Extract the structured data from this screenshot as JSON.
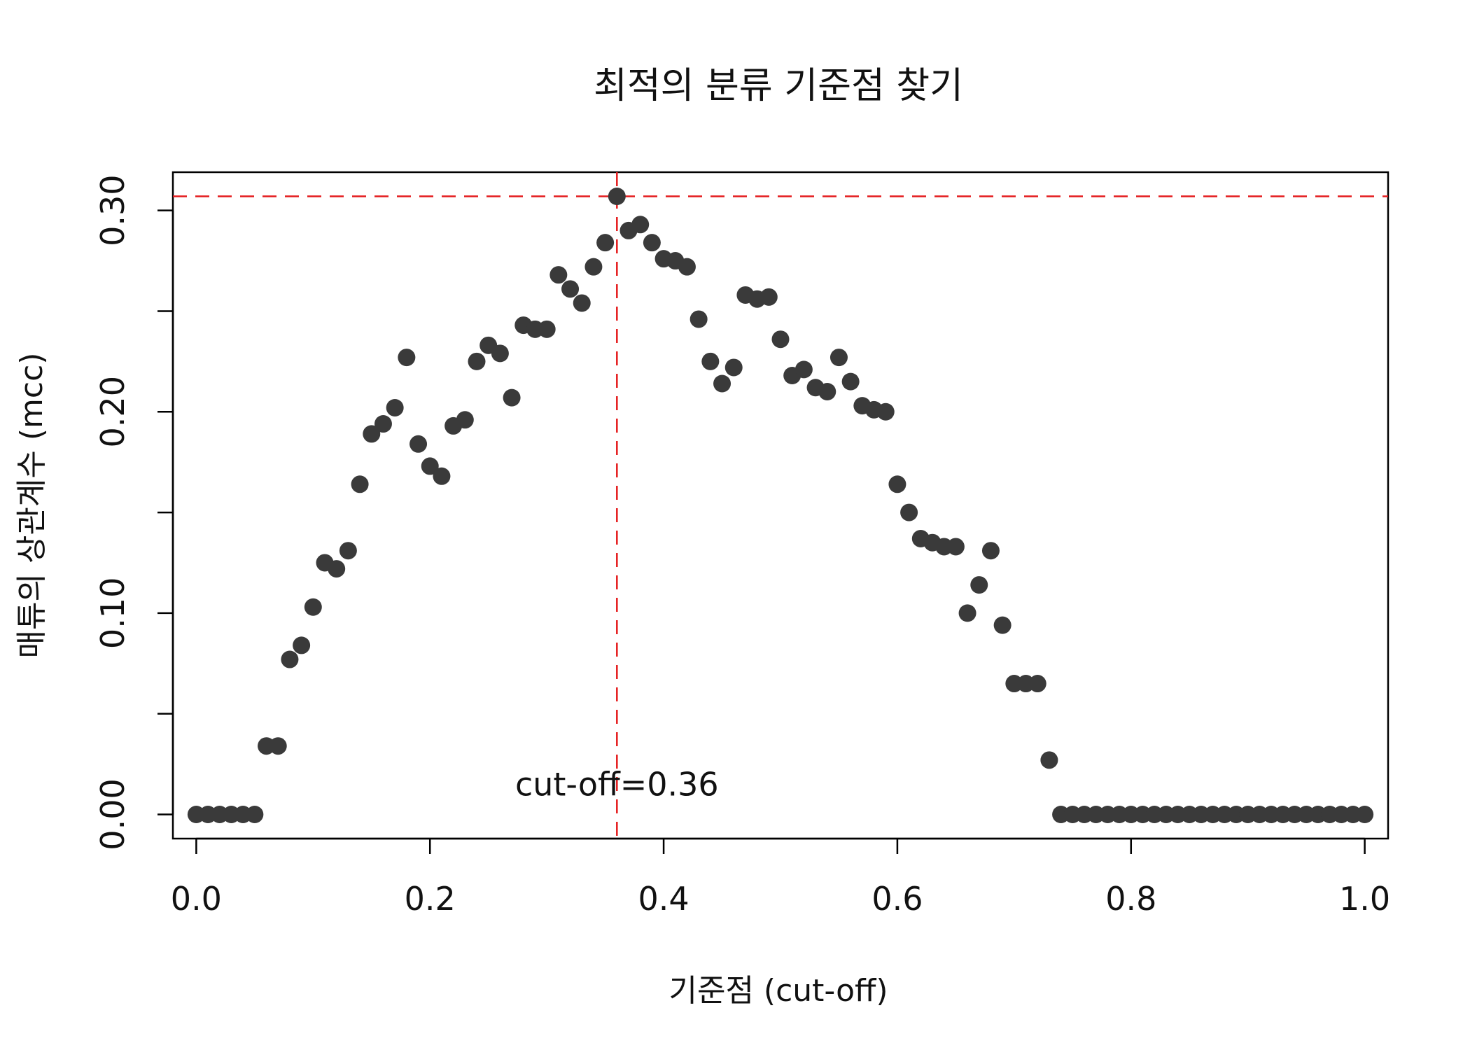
{
  "chart_data": {
    "type": "scatter",
    "title": "최적의 분류 기준점 찾기",
    "xlabel": "기준점 (cut-off)",
    "ylabel": "매튜의 상관계수 (mcc)",
    "xlim": [
      -0.02,
      1.02
    ],
    "ylim": [
      -0.012,
      0.319
    ],
    "x_ticks": [
      0.0,
      0.2,
      0.4,
      0.6,
      0.8,
      1.0
    ],
    "x_tick_labels": [
      "0.0",
      "0.2",
      "0.4",
      "0.6",
      "0.8",
      "1.0"
    ],
    "y_ticks": [
      0.0,
      0.05,
      0.1,
      0.15,
      0.2,
      0.25,
      0.3
    ],
    "y_tick_labels": [
      "0.00",
      "",
      "0.10",
      "",
      "0.20",
      "",
      "0.30"
    ],
    "grid": false,
    "point_color": "#3a3a3a",
    "reference_color": "#e41a1c",
    "reference_lines": {
      "vertical_x": 0.36,
      "horizontal_y": 0.307
    },
    "annotation": {
      "text": "cut-off=0.36",
      "x": 0.36,
      "y": 0.015
    },
    "x": [
      0.0,
      0.01,
      0.02,
      0.03,
      0.04,
      0.05,
      0.06,
      0.07,
      0.08,
      0.09,
      0.1,
      0.11,
      0.12,
      0.13,
      0.14,
      0.15,
      0.16,
      0.17,
      0.18,
      0.19,
      0.2,
      0.21,
      0.22,
      0.23,
      0.24,
      0.25,
      0.26,
      0.27,
      0.28,
      0.29,
      0.3,
      0.31,
      0.32,
      0.33,
      0.34,
      0.35,
      0.36,
      0.37,
      0.38,
      0.39,
      0.4,
      0.41,
      0.42,
      0.43,
      0.44,
      0.45,
      0.46,
      0.47,
      0.48,
      0.49,
      0.5,
      0.51,
      0.52,
      0.53,
      0.54,
      0.55,
      0.56,
      0.57,
      0.58,
      0.59,
      0.6,
      0.61,
      0.62,
      0.63,
      0.64,
      0.65,
      0.66,
      0.67,
      0.68,
      0.69,
      0.7,
      0.71,
      0.72,
      0.73,
      0.74,
      0.75,
      0.76,
      0.77,
      0.78,
      0.79,
      0.8,
      0.81,
      0.82,
      0.83,
      0.84,
      0.85,
      0.86,
      0.87,
      0.88,
      0.89,
      0.9,
      0.91,
      0.92,
      0.93,
      0.94,
      0.95,
      0.96,
      0.97,
      0.98,
      0.99,
      1.0
    ],
    "y": [
      0.0,
      0.0,
      0.0,
      0.0,
      0.0,
      0.0,
      0.034,
      0.034,
      0.077,
      0.084,
      0.103,
      0.125,
      0.122,
      0.131,
      0.164,
      0.189,
      0.194,
      0.202,
      0.227,
      0.184,
      0.173,
      0.168,
      0.193,
      0.196,
      0.225,
      0.233,
      0.229,
      0.207,
      0.243,
      0.241,
      0.241,
      0.268,
      0.261,
      0.254,
      0.272,
      0.284,
      0.307,
      0.29,
      0.293,
      0.284,
      0.276,
      0.275,
      0.272,
      0.246,
      0.225,
      0.214,
      0.222,
      0.258,
      0.256,
      0.257,
      0.236,
      0.218,
      0.221,
      0.212,
      0.21,
      0.227,
      0.215,
      0.203,
      0.201,
      0.2,
      0.164,
      0.15,
      0.137,
      0.135,
      0.133,
      0.133,
      0.1,
      0.114,
      0.131,
      0.094,
      0.065,
      0.065,
      0.065,
      0.027,
      0.0,
      0.0,
      0.0,
      0.0,
      0.0,
      0.0,
      0.0,
      0.0,
      0.0,
      0.0,
      0.0,
      0.0,
      0.0,
      0.0,
      0.0,
      0.0,
      0.0,
      0.0,
      0.0,
      0.0,
      0.0,
      0.0,
      0.0,
      0.0,
      0.0,
      0.0,
      0.0
    ]
  }
}
